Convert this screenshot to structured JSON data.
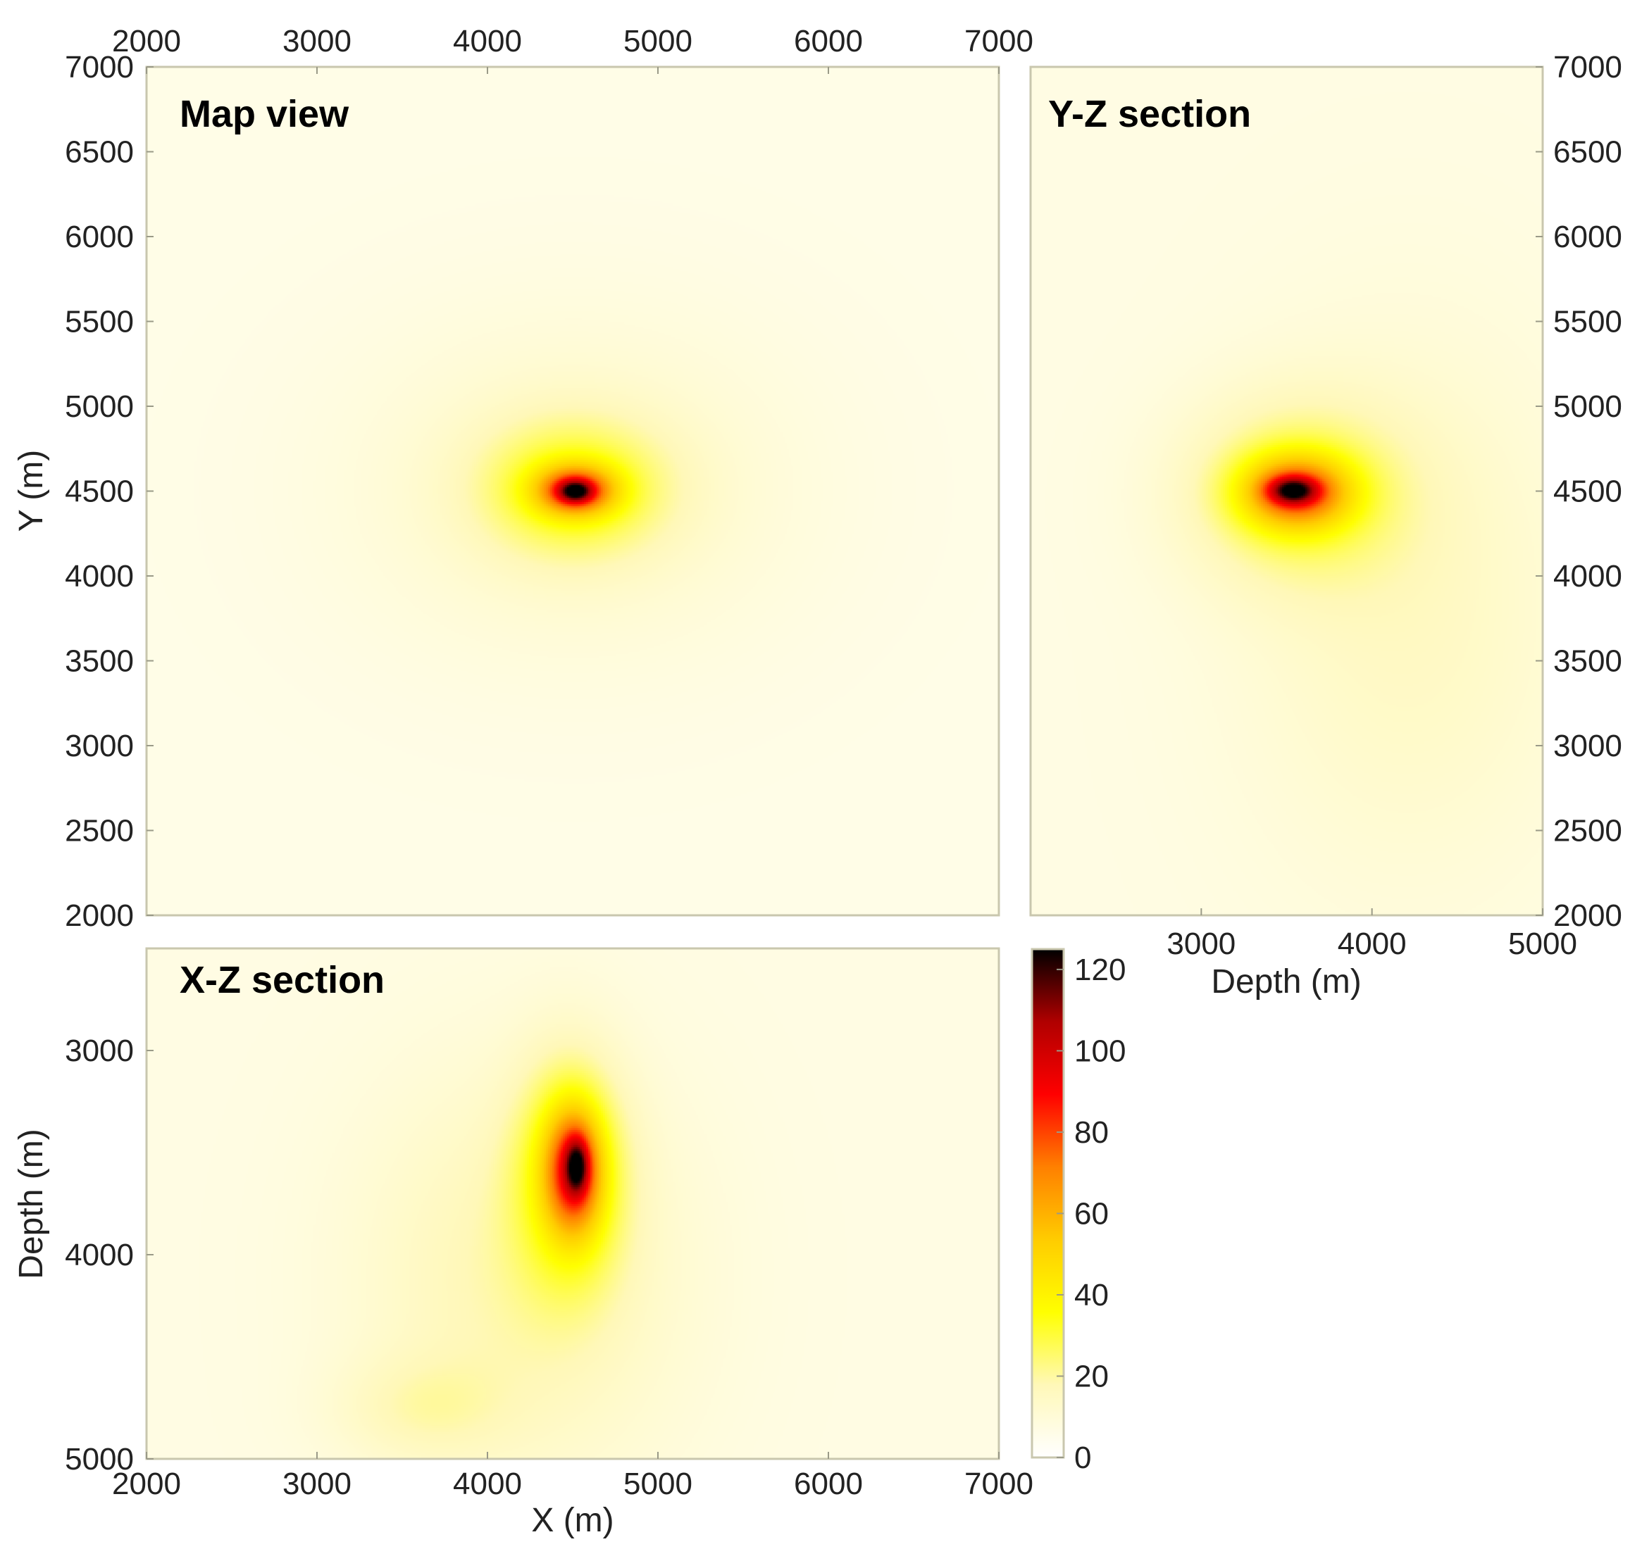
{
  "chart_data": [
    {
      "id": "map",
      "type": "heatmap",
      "title": "Map view",
      "xlim": [
        2000,
        7000
      ],
      "ylim": [
        2000,
        7000
      ],
      "xticks": [
        "2000",
        "3000",
        "4000",
        "5000",
        "6000",
        "7000"
      ],
      "yticks": [
        "2000",
        "2500",
        "3000",
        "3500",
        "4000",
        "4500",
        "5000",
        "5500",
        "6000",
        "6500",
        "7000"
      ],
      "ylabel": "Y (m)",
      "background_value": 6,
      "blobs": [
        {
          "x": 4500,
          "y": 4520,
          "sx": 900,
          "sy": 700,
          "peak": 8
        },
        {
          "x": 4500,
          "y": 4520,
          "sx": 380,
          "sy": 280,
          "peak": 24
        },
        {
          "x": 4510,
          "y": 4510,
          "sx": 160,
          "sy": 100,
          "peak": 55
        },
        {
          "x": 4510,
          "y": 4505,
          "sx": 70,
          "sy": 45,
          "peak": 45
        }
      ]
    },
    {
      "id": "yz",
      "type": "heatmap",
      "title": "Y-Z section",
      "xlim": [
        2000,
        5000
      ],
      "ylim": [
        2000,
        7000
      ],
      "xticks": [
        "3000",
        "4000",
        "5000"
      ],
      "yticks": [
        "2000",
        "2500",
        "3000",
        "3500",
        "4000",
        "4500",
        "5000",
        "5500",
        "6000",
        "6500",
        "7000"
      ],
      "xlabel": "Depth (m)",
      "background_value": 7,
      "blobs": [
        {
          "x": 4200,
          "y": 3800,
          "sx": 700,
          "sy": 1100,
          "peak": 8
        },
        {
          "x": 3550,
          "y": 4500,
          "sx": 450,
          "sy": 380,
          "peak": 20
        },
        {
          "x": 3550,
          "y": 4500,
          "sx": 220,
          "sy": 150,
          "peak": 55
        },
        {
          "x": 3530,
          "y": 4510,
          "sx": 100,
          "sy": 55,
          "peak": 50
        }
      ]
    },
    {
      "id": "xz",
      "type": "heatmap",
      "title": "X-Z section",
      "xlim": [
        2000,
        7000
      ],
      "ylim": [
        5000,
        2500
      ],
      "xticks": [
        "2000",
        "3000",
        "4000",
        "5000",
        "6000",
        "7000"
      ],
      "yticks": [
        "3000",
        "4000",
        "5000"
      ],
      "xlabel": "X (m)",
      "ylabel": "Depth (m)",
      "background_value": 7,
      "blobs": [
        {
          "x": 4200,
          "y": 4100,
          "sx": 650,
          "sy": 700,
          "peak": 12
        },
        {
          "x": 3600,
          "y": 4750,
          "sx": 350,
          "sy": 180,
          "peak": 8
        },
        {
          "x": 4480,
          "y": 3600,
          "sx": 220,
          "sy": 380,
          "peak": 30
        },
        {
          "x": 4500,
          "y": 3580,
          "sx": 110,
          "sy": 200,
          "peak": 55
        },
        {
          "x": 4520,
          "y": 3560,
          "sx": 45,
          "sy": 90,
          "peak": 40
        }
      ]
    }
  ],
  "colorbar": {
    "min": 0,
    "max": 125,
    "ticks": [
      "0",
      "20",
      "40",
      "60",
      "80",
      "100",
      "120"
    ],
    "colormap": [
      "#ffffff",
      "#fff8b8",
      "#ffff00",
      "#ffcc00",
      "#ff8000",
      "#ff0000",
      "#b00000",
      "#000000"
    ]
  }
}
